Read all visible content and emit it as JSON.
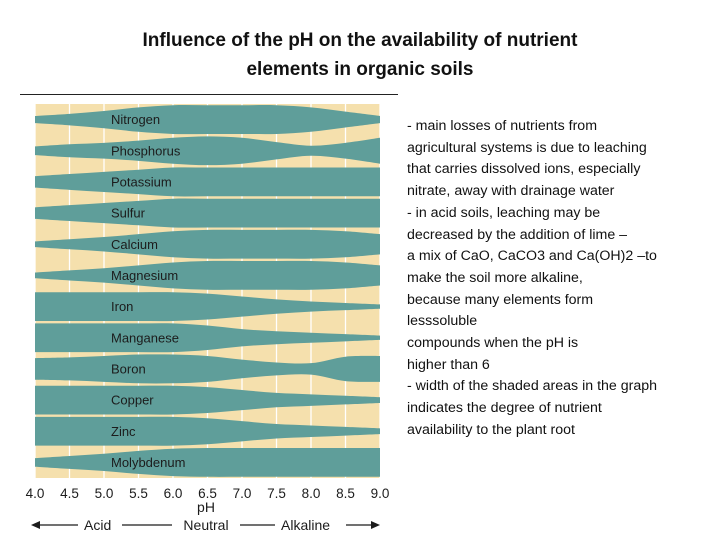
{
  "title": {
    "line1": "Influence of the pH on the availability of nutrient",
    "line2": "elements in organic soils"
  },
  "colors": {
    "band": "#5f9e9a",
    "background": "#f5e0ad",
    "grid": "#ffffff",
    "label": "#1c1c1c"
  },
  "chart_data": {
    "type": "area",
    "title": "Influence of the pH on the availability of nutrient elements in organic soils",
    "xlabel": "pH",
    "xlim": [
      4.0,
      9.0
    ],
    "ticks": [
      "4.0",
      "4.5",
      "5.0",
      "5.5",
      "6.0",
      "6.5",
      "7.0",
      "7.5",
      "8.0",
      "8.5",
      "9.0"
    ],
    "scale_labels": {
      "acid": "Acid",
      "neutral": "Neutral",
      "alkaline": "Alkaline"
    },
    "pH_points": [
      4.0,
      4.5,
      5.0,
      5.5,
      6.0,
      6.5,
      7.0,
      7.5,
      8.0,
      8.5,
      9.0
    ],
    "series": [
      {
        "name": "Nitrogen",
        "values": [
          0.25,
          0.4,
          0.6,
          0.85,
          1.0,
          1.0,
          1.0,
          1.0,
          0.85,
          0.55,
          0.25
        ]
      },
      {
        "name": "Phosphorus",
        "values": [
          0.3,
          0.45,
          0.55,
          0.7,
          0.9,
          1.0,
          0.9,
          0.6,
          0.35,
          0.55,
          0.9
        ]
      },
      {
        "name": "Potassium",
        "values": [
          0.4,
          0.55,
          0.7,
          0.85,
          1.0,
          1.0,
          1.0,
          1.0,
          1.0,
          1.0,
          1.0
        ]
      },
      {
        "name": "Sulfur",
        "values": [
          0.4,
          0.55,
          0.7,
          0.85,
          1.0,
          1.0,
          1.0,
          1.0,
          1.0,
          1.0,
          1.0
        ]
      },
      {
        "name": "Calcium",
        "values": [
          0.2,
          0.35,
          0.5,
          0.7,
          0.9,
          1.0,
          1.0,
          1.0,
          1.0,
          0.9,
          0.7
        ]
      },
      {
        "name": "Magnesium",
        "values": [
          0.2,
          0.35,
          0.5,
          0.7,
          0.9,
          1.0,
          1.0,
          1.0,
          1.0,
          0.9,
          0.7
        ]
      },
      {
        "name": "Iron",
        "values": [
          1.0,
          1.0,
          1.0,
          1.0,
          1.0,
          0.9,
          0.7,
          0.5,
          0.35,
          0.25,
          0.15
        ]
      },
      {
        "name": "Manganese",
        "values": [
          1.0,
          1.0,
          1.0,
          1.0,
          1.0,
          0.85,
          0.6,
          0.45,
          0.35,
          0.25,
          0.15
        ]
      },
      {
        "name": "Boron",
        "values": [
          0.75,
          0.8,
          0.9,
          1.0,
          1.0,
          0.9,
          0.65,
          0.45,
          0.4,
          0.85,
          0.9
        ]
      },
      {
        "name": "Copper",
        "values": [
          1.0,
          1.0,
          1.0,
          1.0,
          1.0,
          0.9,
          0.7,
          0.5,
          0.4,
          0.3,
          0.2
        ]
      },
      {
        "name": "Zinc",
        "values": [
          1.0,
          1.0,
          1.0,
          1.0,
          1.0,
          0.9,
          0.7,
          0.5,
          0.4,
          0.3,
          0.2
        ]
      },
      {
        "name": "Molybdenum",
        "values": [
          0.3,
          0.45,
          0.6,
          0.8,
          0.95,
          1.0,
          1.0,
          1.0,
          1.0,
          1.0,
          1.0
        ]
      }
    ]
  },
  "notes": [
    "- main losses of nutrients from",
    "agricultural systems is due to leaching",
    "that carries dissolved ions, especially",
    "nitrate, away with drainage water",
    "- in acid soils, leaching may be",
    "decreased by the addition of lime –",
    "a mix of CaO, CaCO3 and Ca(OH)2 –to",
    "make the soil more alkaline,",
    "because many elements form",
    "lesssoluble",
    "compounds when the pH is",
    "higher than 6",
    "- width of the shaded areas in the graph",
    "indicates the degree of nutrient",
    "availability to the plant root"
  ]
}
